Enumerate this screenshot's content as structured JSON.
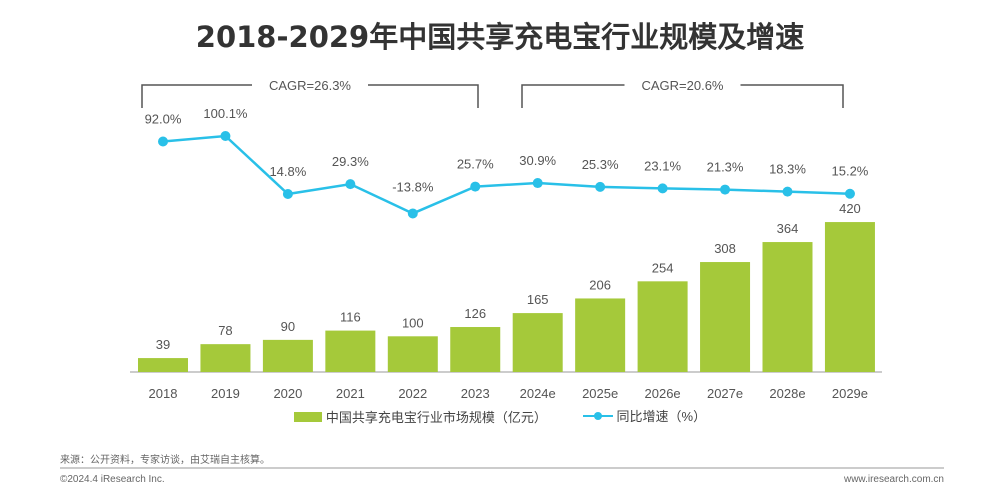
{
  "title": "2018-2029年中国共享充电宝行业规模及增速",
  "chart_data": {
    "type": "bar+line",
    "categories": [
      "2018",
      "2019",
      "2020",
      "2021",
      "2022",
      "2023",
      "2024e",
      "2025e",
      "2026e",
      "2027e",
      "2028e",
      "2029e"
    ],
    "series": [
      {
        "name": "中国共享充电宝行业市场规模（亿元）",
        "type": "bar",
        "color": "#a5c93a",
        "values": [
          39,
          78,
          90,
          116,
          100,
          126,
          165,
          206,
          254,
          308,
          364,
          420
        ]
      },
      {
        "name": "同比增速（%）",
        "type": "line",
        "color": "#29c0e8",
        "values": [
          92.0,
          100.1,
          14.8,
          29.3,
          -13.8,
          25.7,
          30.9,
          25.3,
          23.1,
          21.3,
          18.3,
          15.2
        ],
        "labels": [
          "92.0%",
          "100.1%",
          "14.8%",
          "29.3%",
          "-13.8%",
          "25.7%",
          "30.9%",
          "25.3%",
          "23.1%",
          "21.3%",
          "18.3%",
          "15.2%"
        ]
      }
    ],
    "annotations": [
      {
        "text": "CAGR=26.3%",
        "from": "2018",
        "to": "2023"
      },
      {
        "text": "CAGR=20.6%",
        "from": "2024e",
        "to": "2029e"
      }
    ],
    "legend": "bottom",
    "grid": false
  },
  "legend": {
    "bar": "中国共享充电宝行业市场规模（亿元）",
    "line": "同比增速（%）"
  },
  "footer": {
    "source": "来源：公开资料，专家访谈，由艾瑞自主核算。",
    "copyright": "©2024.4 iResearch Inc.",
    "website": "www.iresearch.com.cn"
  }
}
